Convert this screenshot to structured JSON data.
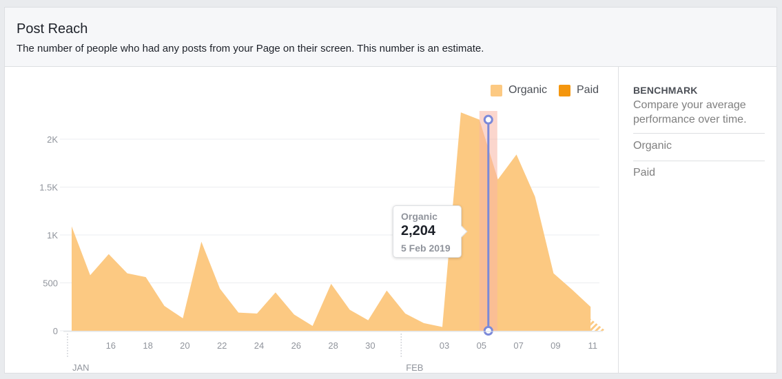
{
  "header": {
    "title": "Post Reach",
    "subtitle": "The number of people who had any posts from your Page on their screen. This number is an estimate."
  },
  "legend": {
    "items": [
      {
        "label": "Organic",
        "color": "#fcc982"
      },
      {
        "label": "Paid",
        "color": "#f4960e"
      }
    ]
  },
  "sidebar": {
    "title": "BENCHMARK",
    "description": "Compare your average performance over time.",
    "items": [
      "Organic",
      "Paid"
    ]
  },
  "tooltip": {
    "series": "Organic",
    "value": "2,204",
    "date": "5 Feb 2019"
  },
  "colors": {
    "organic": "#fcc982",
    "paid": "#f4960e",
    "highlight_band": "#f8b5a4",
    "cursor_line": "#7b89d9"
  },
  "chart_data": {
    "type": "area",
    "x": [
      "2019-01-14",
      "2019-01-15",
      "2019-01-16",
      "2019-01-17",
      "2019-01-18",
      "2019-01-19",
      "2019-01-20",
      "2019-01-21",
      "2019-01-22",
      "2019-01-23",
      "2019-01-24",
      "2019-01-25",
      "2019-01-26",
      "2019-01-27",
      "2019-01-28",
      "2019-01-29",
      "2019-01-30",
      "2019-01-31",
      "2019-02-01",
      "2019-02-02",
      "2019-02-03",
      "2019-02-04",
      "2019-02-05",
      "2019-02-06",
      "2019-02-07",
      "2019-02-08",
      "2019-02-09",
      "2019-02-10",
      "2019-02-11"
    ],
    "series": [
      {
        "name": "Organic",
        "values": [
          1090,
          580,
          800,
          600,
          560,
          260,
          130,
          930,
          440,
          190,
          180,
          400,
          170,
          50,
          490,
          220,
          110,
          420,
          180,
          80,
          40,
          2280,
          2204,
          1580,
          1840,
          1400,
          600,
          430,
          250
        ]
      },
      {
        "name": "Paid",
        "values": [
          0,
          0,
          0,
          0,
          0,
          0,
          0,
          0,
          0,
          0,
          0,
          0,
          0,
          0,
          0,
          0,
          0,
          0,
          0,
          0,
          0,
          0,
          0,
          0,
          0,
          0,
          0,
          0,
          0
        ]
      }
    ],
    "estimated_from": "2019-02-11",
    "highlight_x": "2019-02-05",
    "yticks": [
      {
        "value": 0,
        "label": "0"
      },
      {
        "value": 500,
        "label": "500"
      },
      {
        "value": 1000,
        "label": "1K"
      },
      {
        "value": 1500,
        "label": "1.5K"
      },
      {
        "value": 2000,
        "label": "2K"
      }
    ],
    "xticks": [
      {
        "date": "2019-01-16",
        "label": "16"
      },
      {
        "date": "2019-01-18",
        "label": "18"
      },
      {
        "date": "2019-01-20",
        "label": "20"
      },
      {
        "date": "2019-01-22",
        "label": "22"
      },
      {
        "date": "2019-01-24",
        "label": "24"
      },
      {
        "date": "2019-01-26",
        "label": "26"
      },
      {
        "date": "2019-01-28",
        "label": "28"
      },
      {
        "date": "2019-01-30",
        "label": "30"
      },
      {
        "date": "2019-02-03",
        "label": "03"
      },
      {
        "date": "2019-02-05",
        "label": "05"
      },
      {
        "date": "2019-02-07",
        "label": "07"
      },
      {
        "date": "2019-02-09",
        "label": "09"
      },
      {
        "date": "2019-02-11",
        "label": "11"
      }
    ],
    "month_labels": [
      {
        "date": "2019-01-14",
        "label": "JAN"
      },
      {
        "date": "2019-02-01",
        "label": "FEB"
      }
    ],
    "ylim": [
      0,
      2300
    ],
    "grid": true,
    "legend_position": "top-right"
  }
}
